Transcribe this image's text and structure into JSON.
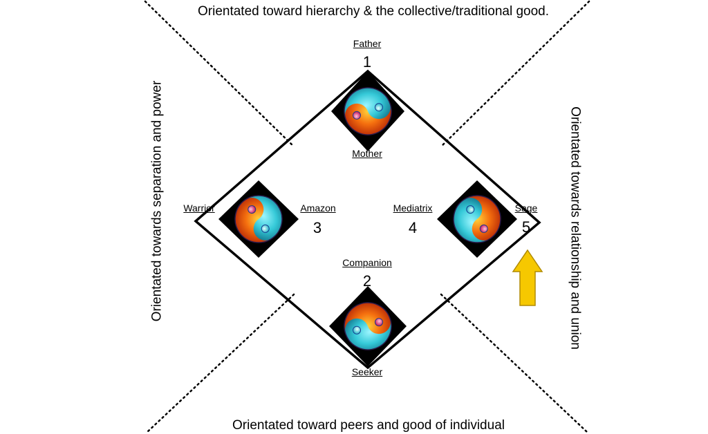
{
  "orientations": {
    "top": "Orientated toward hierarchy & the collective/traditional good.",
    "bottom": "Orientated toward peers and good of individual",
    "left": "Orientated towards separation and power",
    "right": "Orientated towards relationship and union"
  },
  "labels": {
    "father": "Father",
    "mother": "Mother",
    "warrior": "Warrior",
    "amazon": "Amazon",
    "mediatrix": "Mediatrix",
    "sage": "Sage",
    "companion": "Companion",
    "seeker": "Seeker"
  },
  "numbers": {
    "n1": "1",
    "n2": "2",
    "n3": "3",
    "n4": "4",
    "n5": "5"
  },
  "colors": {
    "fire": "#e8420c",
    "water": "#3fd6e6",
    "arrow": "#f6c800",
    "diamond": "#000000"
  }
}
